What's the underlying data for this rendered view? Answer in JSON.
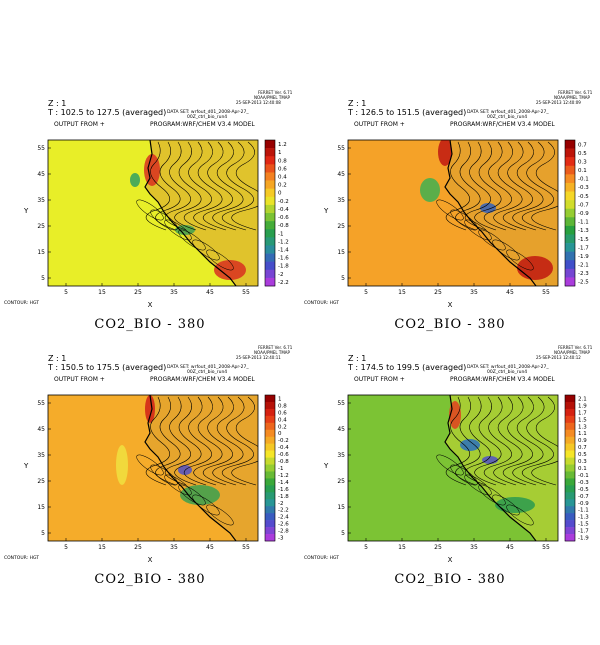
{
  "chart_data": [
    {
      "type": "heatmap",
      "z_label": "Z : 1",
      "t_label": "T : 102.5 to 127.5 (averaged)",
      "output_label": "OUTPUT FROM +",
      "program_label": "PROGRAM:WRF/CHEM V3.4 MODEL",
      "dataset_label": "DATA SET: wrfout_d01_2008-Apr-27_",
      "dataset_label2": "00Z_ctrl_bio_run4",
      "ferret_label": "FERRET Ver. 6.71",
      "noaa_label": "NOAA/PMEL TMAP",
      "date_label": "25-SEP-2013 12:40:08",
      "contour_label": "CONTOUR: HGT",
      "caption": "CO2_BIO - 380",
      "xlabel": "X",
      "ylabel": "Y",
      "xticks": [
        "5",
        "15",
        "25",
        "35",
        "45",
        "55"
      ],
      "yticks": [
        "55",
        "45",
        "35",
        "25",
        "15",
        "5"
      ],
      "colorbar": [
        "1.2",
        "1",
        "0.8",
        "0.6",
        "0.4",
        "0.2",
        "0",
        "-0.2",
        "-0.4",
        "-0.6",
        "-0.8",
        "-1",
        "-1.2",
        "-1.4",
        "-1.6",
        "-1.8",
        "-2",
        "-2.2"
      ],
      "background": "#e8ee28"
    },
    {
      "type": "heatmap",
      "z_label": "Z : 1",
      "t_label": "T : 126.5 to 151.5 (averaged)",
      "output_label": "OUTPUT FROM +",
      "program_label": "PROGRAM:WRF/CHEM V3.4 MODEL",
      "dataset_label": "DATA SET: wrfout_d01_2008-Apr-27_",
      "dataset_label2": "00Z_ctrl_bio_run4",
      "ferret_label": "FERRET Ver. 6.71",
      "noaa_label": "NOAA/PMEL TMAP",
      "date_label": "25-SEP-2013 12:40:09",
      "contour_label": "CONTOUR: HGT",
      "caption": "CO2_BIO - 380",
      "xlabel": "X",
      "ylabel": "Y",
      "xticks": [
        "5",
        "15",
        "25",
        "35",
        "45",
        "55"
      ],
      "yticks": [
        "55",
        "45",
        "35",
        "25",
        "15",
        "5"
      ],
      "colorbar": [
        "0.7",
        "0.5",
        "0.3",
        "0.1",
        "-0.1",
        "-0.3",
        "-0.5",
        "-0.7",
        "-0.9",
        "-1.1",
        "-1.3",
        "-1.5",
        "-1.7",
        "-1.9",
        "-2.1",
        "-2.3",
        "-2.5"
      ],
      "background": "#f5a228"
    },
    {
      "type": "heatmap",
      "z_label": "Z : 1",
      "t_label": "T : 150.5 to 175.5 (averaged)",
      "output_label": "OUTPUT FROM +",
      "program_label": "PROGRAM:WRF/CHEM V3.4 MODEL",
      "dataset_label": "DATA SET: wrfout_d01_2008-Apr-27_",
      "dataset_label2": "00Z_ctrl_bio_run4",
      "ferret_label": "FERRET Ver. 6.71",
      "noaa_label": "NOAA/PMEL TMAP",
      "date_label": "25-SEP-2013 12:40:11",
      "contour_label": "CONTOUR: HGT",
      "caption": "CO2_BIO - 380",
      "xlabel": "X",
      "ylabel": "Y",
      "xticks": [
        "5",
        "15",
        "25",
        "35",
        "45",
        "55"
      ],
      "yticks": [
        "55",
        "45",
        "35",
        "25",
        "15",
        "5"
      ],
      "colorbar": [
        "1",
        "0.8",
        "0.6",
        "0.4",
        "0.2",
        "0",
        "-0.2",
        "-0.4",
        "-0.6",
        "-0.8",
        "-1",
        "-1.2",
        "-1.4",
        "-1.6",
        "-1.8",
        "-2",
        "-2.2",
        "-2.4",
        "-2.6",
        "-2.8",
        "-3"
      ],
      "background": "#f5ac2a"
    },
    {
      "type": "heatmap",
      "z_label": "Z : 1",
      "t_label": "T : 174.5 to 199.5 (averaged)",
      "output_label": "OUTPUT FROM +",
      "program_label": "PROGRAM:WRF/CHEM V3.4 MODEL",
      "dataset_label": "DATA SET: wrfout_d01_2008-Apr-27_",
      "dataset_label2": "00Z_ctrl_bio_run4",
      "ferret_label": "FERRET Ver. 6.71",
      "noaa_label": "NOAA/PMEL TMAP",
      "date_label": "25-SEP-2013 12:40:12",
      "contour_label": "CONTOUR: HGT",
      "caption": "CO2_BIO - 380",
      "xlabel": "X",
      "ylabel": "Y",
      "xticks": [
        "5",
        "15",
        "25",
        "35",
        "45",
        "55"
      ],
      "yticks": [
        "55",
        "45",
        "35",
        "25",
        "15",
        "5"
      ],
      "colorbar": [
        "2.1",
        "1.9",
        "1.7",
        "1.5",
        "1.3",
        "1.1",
        "0.9",
        "0.7",
        "0.5",
        "0.3",
        "0.1",
        "-0.1",
        "-0.3",
        "-0.5",
        "-0.7",
        "-0.9",
        "-1.1",
        "-1.3",
        "-1.5",
        "-1.7",
        "-1.9"
      ],
      "background": "#7cc334"
    }
  ]
}
